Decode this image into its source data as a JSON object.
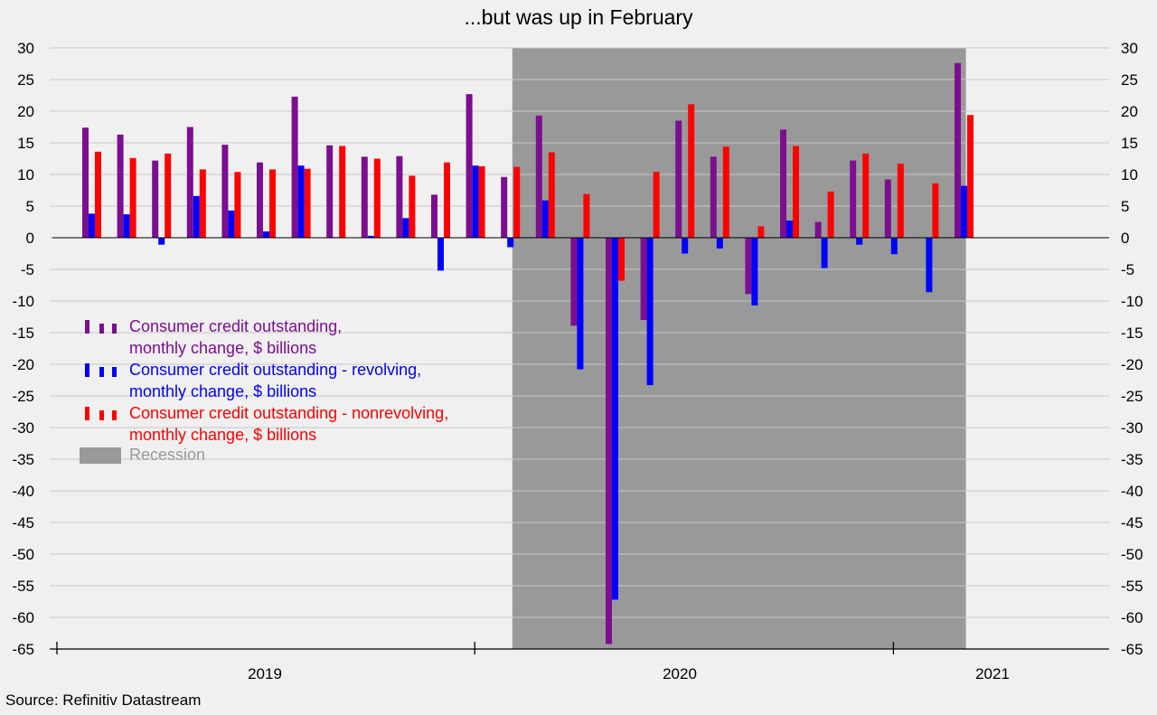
{
  "source": "Source: Refinitiv Datastream",
  "chart_data": {
    "type": "bar",
    "title": "...but was up in February",
    "xlabel": "",
    "ylabel": "",
    "ylim": [
      -65,
      30
    ],
    "yticks": [
      30,
      25,
      20,
      15,
      10,
      5,
      0,
      -5,
      -10,
      -15,
      -20,
      -25,
      -30,
      -35,
      -40,
      -45,
      -50,
      -55,
      -60,
      -65
    ],
    "y_axis_sides": [
      "left",
      "right"
    ],
    "grid": true,
    "legend_position": "left-center",
    "categories": [
      "2019-01",
      "2019-02",
      "2019-03",
      "2019-04",
      "2019-05",
      "2019-06",
      "2019-07",
      "2019-08",
      "2019-09",
      "2019-10",
      "2019-11",
      "2019-12",
      "2020-01",
      "2020-02",
      "2020-03",
      "2020-04",
      "2020-05",
      "2020-06",
      "2020-07",
      "2020-08",
      "2020-09",
      "2020-10",
      "2020-11",
      "2020-12",
      "2021-01",
      "2021-02"
    ],
    "year_labels": [
      "2019",
      "2020",
      "2021"
    ],
    "series": [
      {
        "name": "Consumer credit outstanding, monthly change, $ billions",
        "legend_lines": [
          "Consumer credit outstanding,",
          "monthly change, $ billions"
        ],
        "color": "#7b0f8f",
        "values": [
          17.4,
          16.3,
          12.2,
          17.5,
          14.7,
          11.9,
          22.3,
          14.6,
          12.8,
          12.9,
          6.8,
          22.7,
          9.6,
          19.3,
          -13.9,
          -64.2,
          -13.0,
          18.5,
          12.8,
          -8.9,
          17.1,
          2.5,
          12.2,
          9.2,
          0.0,
          27.6
        ]
      },
      {
        "name": "Consumer credit outstanding - revolving, monthly change, $ billions",
        "legend_lines": [
          "Consumer credit outstanding - revolving,",
          "monthly change, $ billions"
        ],
        "color": "#0000ff",
        "values": [
          3.8,
          3.7,
          -1.1,
          6.6,
          4.3,
          1.0,
          11.4,
          0.1,
          0.3,
          3.1,
          -5.2,
          11.4,
          -1.5,
          5.9,
          -20.8,
          -57.2,
          -23.3,
          -2.5,
          -1.7,
          -10.7,
          2.7,
          -4.8,
          -1.1,
          -2.6,
          -8.6,
          8.2
        ]
      },
      {
        "name": "Consumer credit outstanding - nonrevolving, monthly change, $ billions",
        "legend_lines": [
          "Consumer credit outstanding - nonrevolving,",
          "monthly change, $ billions"
        ],
        "color": "#ff0000",
        "values": [
          13.6,
          12.6,
          13.3,
          10.8,
          10.4,
          10.8,
          10.9,
          14.5,
          12.5,
          9.8,
          11.9,
          11.3,
          11.2,
          13.5,
          6.9,
          -6.8,
          10.4,
          21.1,
          14.4,
          1.8,
          14.5,
          7.3,
          13.3,
          11.7,
          8.6,
          19.4
        ]
      }
    ],
    "recession": {
      "label": "Recession",
      "color": "#999999",
      "start_index": 13,
      "end_index": 26
    }
  }
}
